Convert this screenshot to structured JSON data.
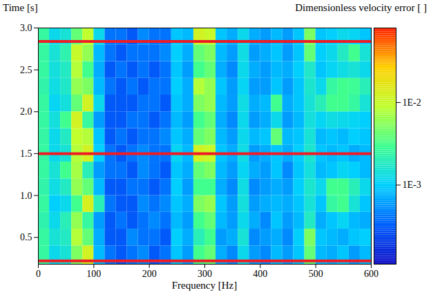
{
  "chart_data": {
    "type": "heatmap",
    "x_label": "Frequency [Hz]",
    "y_label": "Time [s]",
    "colorbar_label": "Dimensionless velocity error [ ]",
    "xlim": [
      0,
      600
    ],
    "xticks": [
      0,
      100,
      200,
      300,
      400,
      500,
      600
    ],
    "ylim": [
      0.18,
      3
    ],
    "yticks": [
      0.5,
      {
        "value": 1,
        "label": "1.0"
      },
      1.5,
      {
        "value": 2,
        "label": "2.0"
      },
      2.5,
      {
        "value": 3,
        "label": "3.0"
      }
    ],
    "colorbar_lim": [
      0.00011,
      0.08
    ],
    "colorbar_ticks": [
      {
        "value": 0.001,
        "label": "1E-3"
      },
      {
        "value": 0.01,
        "label": "1E-2"
      }
    ],
    "time_marks": [
      0.22,
      1.5,
      2.84
    ],
    "x_edges": [
      0,
      20,
      40,
      60,
      80,
      100,
      120,
      140,
      160,
      180,
      200,
      220,
      240,
      260,
      280,
      300,
      320,
      340,
      360,
      380,
      400,
      420,
      440,
      460,
      480,
      500,
      520,
      540,
      560,
      580,
      600
    ],
    "y_edges": [
      0.18,
      0.4,
      0.6,
      0.8,
      1.0,
      1.2,
      1.4,
      1.6,
      1.8,
      2.0,
      2.2,
      2.4,
      2.6,
      2.8,
      3.0
    ],
    "cells": [
      [
        0.0025,
        0.0012,
        0.0015,
        0.005,
        0.012,
        0.0008,
        0.0004,
        0.0003,
        0.0004,
        0.0005,
        0.0003,
        0.0004,
        0.0009,
        0.0006,
        0.003,
        0.004,
        0.0007,
        0.0005,
        0.0012,
        0.0006,
        0.0005,
        0.0008,
        0.0006,
        0.0009,
        0.004,
        0.0008,
        0.0007,
        0.0009,
        0.0006,
        0.0008
      ],
      [
        0.0025,
        0.0015,
        0.0018,
        0.008,
        0.004,
        0.0007,
        0.0003,
        0.0003,
        0.0005,
        0.0004,
        0.0004,
        0.0003,
        0.001,
        0.0007,
        0.002,
        0.003,
        0.0006,
        0.0007,
        0.0015,
        0.0005,
        0.0006,
        0.0007,
        0.0005,
        0.001,
        0.005,
        0.0009,
        0.0008,
        0.0007,
        0.0009,
        0.001
      ],
      [
        0.0022,
        0.0012,
        0.002,
        0.006,
        0.0025,
        0.0006,
        0.0003,
        0.0004,
        0.0003,
        0.0004,
        0.0005,
        0.0004,
        0.0008,
        0.0006,
        0.003,
        0.004,
        0.0008,
        0.0006,
        0.0012,
        0.0007,
        0.0005,
        0.0009,
        0.0006,
        0.0008,
        0.0018,
        0.0007,
        0.0009,
        0.0011,
        0.0008,
        0.0007
      ],
      [
        0.0025,
        0.001,
        0.0012,
        0.003,
        0.013,
        0.002,
        0.0004,
        0.0003,
        0.0003,
        0.0005,
        0.0004,
        0.0005,
        0.0009,
        0.0007,
        0.005,
        0.006,
        0.0009,
        0.0006,
        0.0014,
        0.0006,
        0.0007,
        0.0008,
        0.0007,
        0.0009,
        0.0015,
        0.0009,
        0.0025,
        0.003,
        0.0015,
        0.0009
      ],
      [
        0.0023,
        0.0013,
        0.0018,
        0.006,
        0.004,
        0.0008,
        0.0003,
        0.0003,
        0.0004,
        0.0004,
        0.0003,
        0.0004,
        0.001,
        0.0006,
        0.003,
        0.003,
        0.0007,
        0.0005,
        0.0013,
        0.0005,
        0.0006,
        0.0007,
        0.0006,
        0.001,
        0.0016,
        0.0012,
        0.003,
        0.003,
        0.002,
        0.0012
      ],
      [
        0.0025,
        0.0015,
        0.003,
        0.007,
        0.002,
        0.0006,
        0.0004,
        0.0004,
        0.0003,
        0.0005,
        0.0004,
        0.0003,
        0.0009,
        0.0007,
        0.004,
        0.005,
        0.0008,
        0.0006,
        0.0011,
        0.0007,
        0.0006,
        0.0009,
        0.0005,
        0.0009,
        0.0014,
        0.0008,
        0.0009,
        0.0011,
        0.001,
        0.0008
      ],
      [
        0.0025,
        0.0012,
        0.0015,
        0.008,
        0.012,
        0.001,
        0.0004,
        0.0003,
        0.0004,
        0.0005,
        0.0004,
        0.0004,
        0.0011,
        0.0008,
        0.012,
        0.01,
        0.0009,
        0.0007,
        0.0013,
        0.0006,
        0.0007,
        0.0009,
        0.0007,
        0.001,
        0.0016,
        0.0009,
        0.0008,
        0.0009,
        0.0007,
        0.0008
      ],
      [
        0.0024,
        0.0012,
        0.0018,
        0.009,
        0.008,
        0.0009,
        0.0003,
        0.0004,
        0.0003,
        0.0004,
        0.0004,
        0.0005,
        0.0009,
        0.0007,
        0.004,
        0.005,
        0.0008,
        0.0006,
        0.0012,
        0.0008,
        0.0009,
        0.004,
        0.0008,
        0.0009,
        0.0015,
        0.0008,
        0.0009,
        0.0008,
        0.001,
        0.0009
      ],
      [
        0.0025,
        0.0014,
        0.003,
        0.012,
        0.0025,
        0.0006,
        0.0003,
        0.0003,
        0.0004,
        0.0004,
        0.0003,
        0.0004,
        0.0008,
        0.0006,
        0.003,
        0.004,
        0.0007,
        0.0005,
        0.0012,
        0.0006,
        0.0007,
        0.0012,
        0.0006,
        0.0008,
        0.0014,
        0.0011,
        0.0013,
        0.0012,
        0.0011,
        0.001
      ],
      [
        0.0025,
        0.0011,
        0.0014,
        0.004,
        0.012,
        0.0012,
        0.0003,
        0.0003,
        0.0003,
        0.0004,
        0.0004,
        0.0003,
        0.0009,
        0.0007,
        0.005,
        0.006,
        0.0008,
        0.0006,
        0.0013,
        0.0007,
        0.0008,
        0.003,
        0.0007,
        0.0009,
        0.0015,
        0.002,
        0.003,
        0.003,
        0.0025,
        0.0015
      ],
      [
        0.0023,
        0.0013,
        0.0017,
        0.006,
        0.005,
        0.0008,
        0.0004,
        0.0003,
        0.0004,
        0.0003,
        0.0004,
        0.0004,
        0.001,
        0.0007,
        0.008,
        0.006,
        0.0009,
        0.0006,
        0.0011,
        0.0006,
        0.0006,
        0.0009,
        0.0006,
        0.0009,
        0.0016,
        0.0012,
        0.0025,
        0.003,
        0.0028,
        0.002
      ],
      [
        0.0025,
        0.0014,
        0.0018,
        0.008,
        0.003,
        0.0007,
        0.0003,
        0.0004,
        0.0003,
        0.0004,
        0.0003,
        0.0004,
        0.0009,
        0.0006,
        0.003,
        0.004,
        0.0007,
        0.0005,
        0.0012,
        0.0007,
        0.0006,
        0.0008,
        0.0007,
        0.001,
        0.0017,
        0.0009,
        0.0011,
        0.0013,
        0.0015,
        0.0012
      ],
      [
        0.0025,
        0.0015,
        0.0022,
        0.01,
        0.006,
        0.0008,
        0.0004,
        0.0003,
        0.0004,
        0.0004,
        0.0004,
        0.0005,
        0.001,
        0.0007,
        0.004,
        0.005,
        0.0008,
        0.0006,
        0.0013,
        0.0006,
        0.0007,
        0.0009,
        0.0006,
        0.0009,
        0.004,
        0.001,
        0.0012,
        0.0018,
        0.003,
        0.0015
      ],
      [
        0.0025,
        0.0012,
        0.0015,
        0.004,
        0.009,
        0.0012,
        0.0004,
        0.0004,
        0.0003,
        0.0005,
        0.0004,
        0.0004,
        0.0009,
        0.0008,
        0.012,
        0.01,
        0.0009,
        0.0007,
        0.0012,
        0.0007,
        0.0006,
        0.0008,
        0.0006,
        0.0009,
        0.005,
        0.0009,
        0.001,
        0.0012,
        0.0011,
        0.0009
      ]
    ]
  }
}
